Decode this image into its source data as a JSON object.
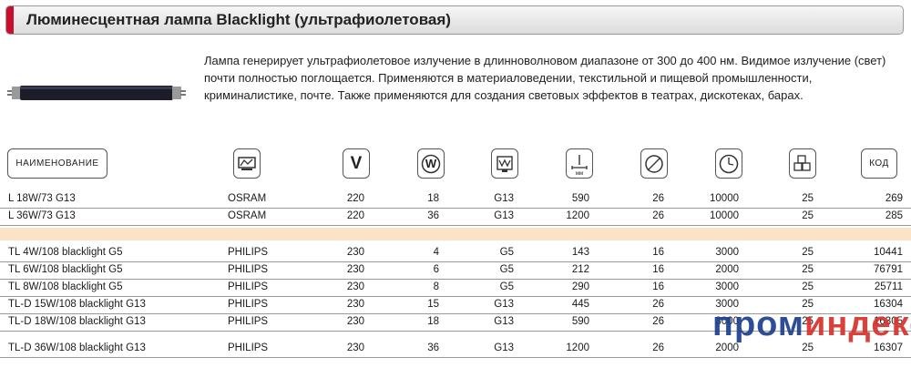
{
  "header": {
    "title": "Люминесцентная лампа Blacklight (ультрафиолетовая)"
  },
  "description": "Лампа генерирует ультрафиолетовое излучение в длинноволновом диапазоне от 300 до 400 нм. Видимое излучение (свет) почти полностью поглощается. Применяются в материаловедении, текстильной и пищевой промышленности, криминалистике, почте. Также применяются для создания световых эффектов в театрах, дискотеках, барах.",
  "table": {
    "columns": [
      {
        "label": "НАИМЕНОВАНИЕ"
      },
      {
        "icon": "brand-icon"
      },
      {
        "icon": "voltage-icon",
        "symbol": "V"
      },
      {
        "icon": "wattage-icon",
        "symbol": "W"
      },
      {
        "icon": "lamp-base-icon"
      },
      {
        "icon": "length-icon",
        "unit": "мм"
      },
      {
        "icon": "diameter-icon"
      },
      {
        "icon": "lifetime-clock-icon"
      },
      {
        "icon": "package-quantity-icon"
      },
      {
        "label": "КОД"
      }
    ],
    "group1": [
      {
        "name": "L 18W/73 G13",
        "brand": "OSRAM",
        "voltage": "220",
        "wattage": "18",
        "base": "G13",
        "length": "590",
        "diameter": "26",
        "life": "10000",
        "pack": "25",
        "code": "269"
      },
      {
        "name": "L 36W/73 G13",
        "brand": "OSRAM",
        "voltage": "220",
        "wattage": "36",
        "base": "G13",
        "length": "1200",
        "diameter": "26",
        "life": "10000",
        "pack": "25",
        "code": "285"
      }
    ],
    "group2": [
      {
        "name": "TL 4W/108 blacklight G5",
        "brand": "PHILIPS",
        "voltage": "230",
        "wattage": "4",
        "base": "G5",
        "length": "143",
        "diameter": "16",
        "life": "3000",
        "pack": "25",
        "code": "10441"
      },
      {
        "name": "TL 6W/108 blacklight G5",
        "brand": "PHILIPS",
        "voltage": "230",
        "wattage": "6",
        "base": "G5",
        "length": "212",
        "diameter": "16",
        "life": "2000",
        "pack": "25",
        "code": "76791"
      },
      {
        "name": "TL 8W/108 blacklight G5",
        "brand": "PHILIPS",
        "voltage": "230",
        "wattage": "8",
        "base": "G5",
        "length": "290",
        "diameter": "16",
        "life": "3000",
        "pack": "25",
        "code": "25711"
      },
      {
        "name": "TL-D 15W/108 blacklight G13",
        "brand": "PHILIPS",
        "voltage": "230",
        "wattage": "15",
        "base": "G13",
        "length": "445",
        "diameter": "26",
        "life": "3000",
        "pack": "25",
        "code": "16304"
      },
      {
        "name": "TL-D 18W/108 blacklight G13",
        "brand": "PHILIPS",
        "voltage": "230",
        "wattage": "18",
        "base": "G13",
        "length": "590",
        "diameter": "26",
        "life": "3000",
        "pack": "25",
        "code": "16305"
      },
      {
        "name": "TL-D 36W/108 blacklight G13",
        "brand": "PHILIPS",
        "voltage": "230",
        "wattage": "36",
        "base": "G13",
        "length": "1200",
        "diameter": "26",
        "life": "2000",
        "pack": "25",
        "code": "16307"
      }
    ]
  },
  "watermark": {
    "part1": "пром",
    "part2": "индекс"
  },
  "colors": {
    "accent": "#c8102e",
    "separator_band": "#fbe3c7",
    "watermark_blue": "#1c3f8f",
    "watermark_red": "#d6332c"
  }
}
